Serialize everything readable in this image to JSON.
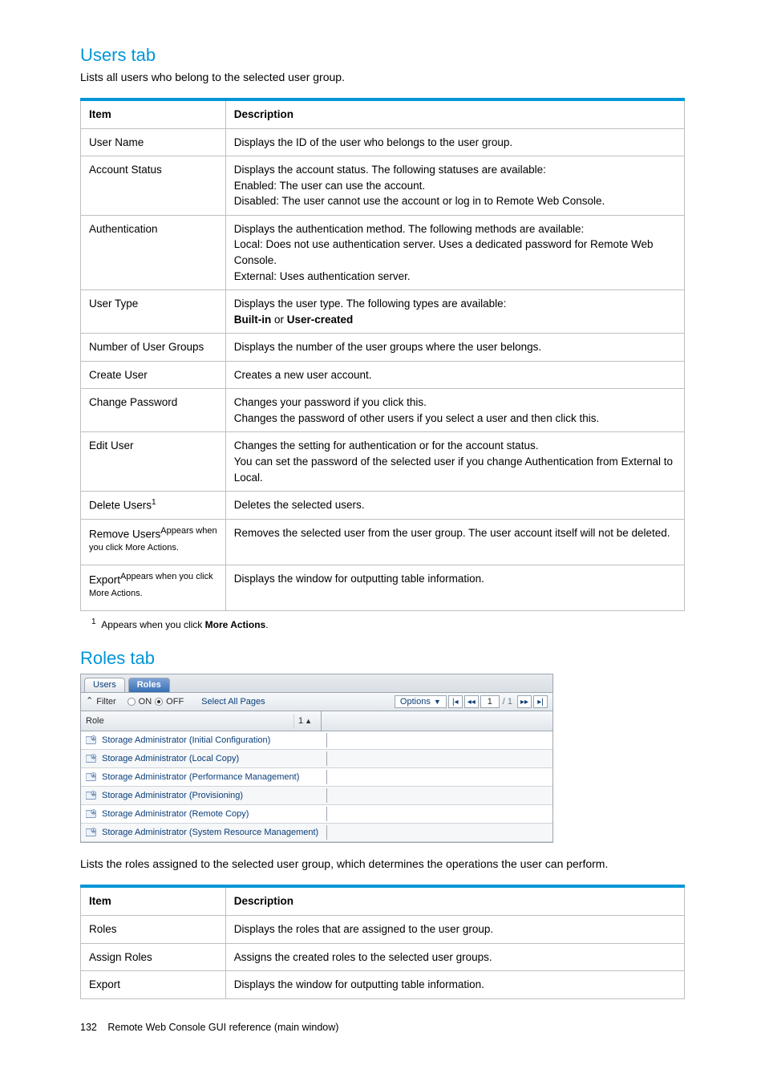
{
  "accent_color": "#0096d6",
  "link_color": "#0a3e7a",
  "users_tab": {
    "title": "Users tab",
    "intro": "Lists all users who belong to the selected user group.",
    "columns": {
      "item": "Item",
      "description": "Description"
    },
    "rows": [
      {
        "item": "User Name",
        "desc": "Displays the ID of the user who belongs to the user group."
      },
      {
        "item": "Account Status",
        "desc_lines": [
          "Displays the account status. The following statuses are available:",
          "Enabled: The user can use the account.",
          "Disabled: The user cannot use the account or log in to Remote Web Console."
        ]
      },
      {
        "item": "Authentication",
        "desc_lines": [
          "Displays the authentication method. The following methods are available:",
          "Local: Does not use authentication server. Uses a dedicated password for Remote Web Console.",
          "External: Uses authentication server."
        ]
      },
      {
        "item": "User Type",
        "desc_lines": [
          "Displays the user type. The following types are available:",
          "__BOLD__Built-in__/BOLD__ or __BOLD__User-created__/BOLD__"
        ]
      },
      {
        "item": "Number of User Groups",
        "desc": "Displays the number of the user groups where the user belongs."
      },
      {
        "item": "Create User",
        "desc": "Creates a new user account."
      },
      {
        "item": "Change Password",
        "desc_lines": [
          "Changes your password if you click this.",
          "Changes the password of other users if you select a user and then click this."
        ]
      },
      {
        "item": "Edit User",
        "desc_lines": [
          "Changes the setting for authentication or for the account status.",
          "You can set the password of the selected user if you change Authentication from External to Local."
        ]
      },
      {
        "item_html": "Delete Users<sup class='sup'>1</sup>",
        "desc": "Deletes the selected users."
      },
      {
        "item_html": "Remove Users<span class='supnote'>Appears when you click More Actions.</span>",
        "desc": "Removes the selected user from the user group. The user account itself will not be deleted."
      },
      {
        "item_html": "Export<span class='supnote'>Appears when you click More Actions.</span>",
        "desc": "Displays the window for outputting table information."
      }
    ],
    "footnote": {
      "num": "1",
      "text_pre": "Appears when you click ",
      "bold": "More Actions",
      "text_post": "."
    }
  },
  "roles_tab": {
    "title": "Roles tab",
    "panel": {
      "tabs": {
        "users": "Users",
        "roles": "Roles"
      },
      "filter_label": "Filter",
      "on_label": "ON",
      "off_label": "OFF",
      "off_selected": true,
      "select_all_label": "Select All Pages",
      "options_label": "Options",
      "page_current": "1",
      "page_total": "1",
      "header_role": "Role",
      "sort_col": "1",
      "roles": [
        "Storage Administrator (Initial Configuration)",
        "Storage Administrator (Local Copy)",
        "Storage Administrator (Performance Management)",
        "Storage Administrator (Provisioning)",
        "Storage Administrator (Remote Copy)",
        "Storage Administrator (System Resource Management)"
      ]
    },
    "intro": "Lists the roles assigned to the selected user group, which determines the operations the user can perform.",
    "columns": {
      "item": "Item",
      "description": "Description"
    },
    "rows": [
      {
        "item": "Roles",
        "desc": "Displays the roles that are assigned to the user group."
      },
      {
        "item": "Assign Roles",
        "desc": "Assigns the created roles to the selected user groups."
      },
      {
        "item": "Export",
        "desc": "Displays the window for outputting table information."
      }
    ]
  },
  "footer": {
    "page_num": "132",
    "text": "Remote Web Console GUI reference (main window)"
  }
}
